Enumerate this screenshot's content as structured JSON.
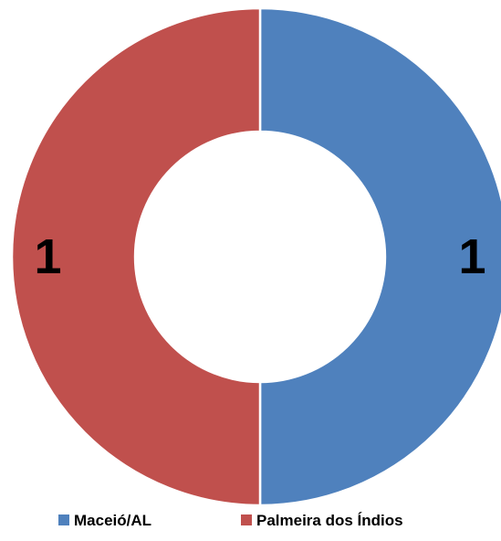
{
  "chart_data": {
    "type": "pie",
    "variant": "donut",
    "categories": [
      "Maceió/AL",
      "Palmeira dos Índios"
    ],
    "values": [
      1,
      1
    ],
    "data_labels": [
      "1",
      "1"
    ],
    "colors": [
      "#4F81BD",
      "#C0504D"
    ],
    "legend": {
      "placement": "bottom",
      "entries": [
        "Maceió/AL",
        "Palmeira dos Índios"
      ]
    },
    "title": ""
  }
}
